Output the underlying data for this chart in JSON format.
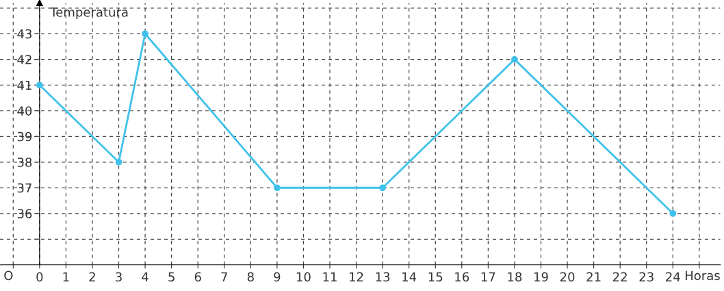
{
  "chart_data": {
    "type": "line",
    "xlabel": "Horas",
    "ylabel": "Temperatura",
    "annotations": [
      "O"
    ],
    "x": [
      0,
      3,
      4,
      9,
      13,
      18,
      24
    ],
    "series": [
      {
        "color": "#3ec1ea",
        "values": [
          41,
          38,
          43,
          37,
          37,
          42,
          36
        ]
      }
    ],
    "xlim": [
      -1.5,
      25.8
    ],
    "ylim": [
      34,
      44.2
    ],
    "xticks": [
      {
        "value": -1,
        "label": null
      },
      0,
      1,
      2,
      3,
      4,
      5,
      6,
      7,
      8,
      9,
      10,
      11,
      12,
      13,
      14,
      15,
      16,
      17,
      18,
      19,
      20,
      21,
      22,
      23,
      24,
      {
        "value": 25,
        "label": null
      }
    ],
    "yticks": [
      {
        "value": 35,
        "label": null
      },
      36,
      37,
      38,
      39,
      40,
      41,
      42,
      43,
      {
        "value": 44,
        "label": null
      }
    ],
    "grid": true,
    "marker": "circle",
    "line_style": "solid"
  }
}
